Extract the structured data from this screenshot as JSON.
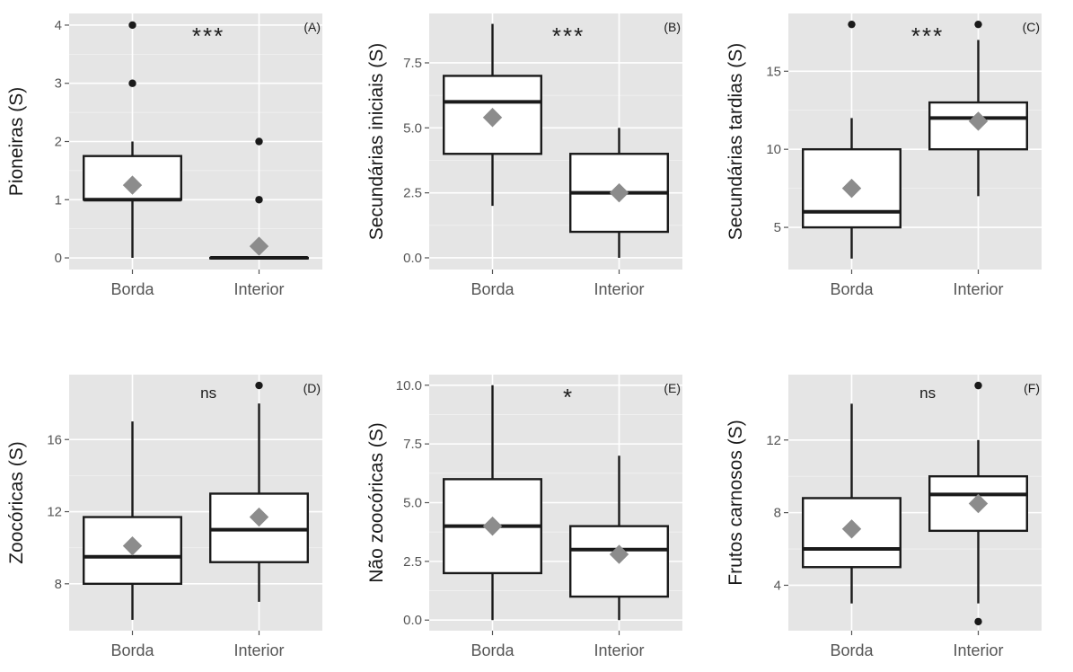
{
  "chart_data": [
    {
      "type": "box",
      "tag": "(A)",
      "ylabel": "Pioneiras (S)",
      "significance": "***",
      "categories": [
        "Borda",
        "Interior"
      ],
      "yticks": [
        0,
        1,
        2,
        3,
        4
      ],
      "ytick_labels": [
        "0",
        "1",
        "2",
        "3",
        "4"
      ],
      "ylim": [
        -0.2,
        4.2
      ],
      "grid": true,
      "boxes": [
        {
          "category": "Borda",
          "whisker_low": 0,
          "q1": 1,
          "median": 1,
          "q3": 1.75,
          "whisker_high": 2,
          "mean": 1.25,
          "outliers": [
            3,
            4
          ]
        },
        {
          "category": "Interior",
          "whisker_low": 0,
          "q1": 0,
          "median": 0,
          "q3": 0,
          "whisker_high": 0,
          "mean": 0.2,
          "outliers": [
            1,
            2
          ]
        }
      ]
    },
    {
      "type": "box",
      "tag": "(B)",
      "ylabel": "Secundárias iniciais (S)",
      "significance": "***",
      "categories": [
        "Borda",
        "Interior"
      ],
      "yticks": [
        0,
        2.5,
        5,
        7.5
      ],
      "ytick_labels": [
        "0.0",
        "2.5",
        "5.0",
        "7.5"
      ],
      "ylim": [
        -0.45,
        9.4
      ],
      "grid": true,
      "boxes": [
        {
          "category": "Borda",
          "whisker_low": 2,
          "q1": 4,
          "median": 6,
          "q3": 7,
          "whisker_high": 9,
          "mean": 5.4,
          "outliers": []
        },
        {
          "category": "Interior",
          "whisker_low": 0,
          "q1": 1,
          "median": 2.5,
          "q3": 4,
          "whisker_high": 5,
          "mean": 2.5,
          "outliers": []
        }
      ]
    },
    {
      "type": "box",
      "tag": "(C)",
      "ylabel": "Secundárias tardias (S)",
      "significance": "***",
      "categories": [
        "Borda",
        "Interior"
      ],
      "yticks": [
        5,
        10,
        15
      ],
      "ytick_labels": [
        "5",
        "10",
        "15"
      ],
      "ylim": [
        2.3,
        18.7
      ],
      "grid": true,
      "boxes": [
        {
          "category": "Borda",
          "whisker_low": 3,
          "q1": 5,
          "median": 6,
          "q3": 10,
          "whisker_high": 12,
          "mean": 7.5,
          "outliers": [
            18
          ]
        },
        {
          "category": "Interior",
          "whisker_low": 7,
          "q1": 10,
          "median": 12,
          "q3": 13,
          "whisker_high": 17,
          "mean": 11.8,
          "outliers": [
            18
          ]
        }
      ]
    },
    {
      "type": "box",
      "tag": "(D)",
      "ylabel": "Zoocóricas (S)",
      "significance": "ns",
      "categories": [
        "Borda",
        "Interior"
      ],
      "yticks": [
        8,
        12,
        16
      ],
      "ytick_labels": [
        "8",
        "12",
        "16"
      ],
      "ylim": [
        5.4,
        19.6
      ],
      "grid": true,
      "boxes": [
        {
          "category": "Borda",
          "whisker_low": 6,
          "q1": 8,
          "median": 9.5,
          "q3": 11.7,
          "whisker_high": 17,
          "mean": 10.1,
          "outliers": []
        },
        {
          "category": "Interior",
          "whisker_low": 7,
          "q1": 9.2,
          "median": 11,
          "q3": 13,
          "whisker_high": 18,
          "mean": 11.7,
          "outliers": [
            19
          ]
        }
      ]
    },
    {
      "type": "box",
      "tag": "(E)",
      "ylabel": "Não zoocóricas (S)",
      "significance": "*",
      "categories": [
        "Borda",
        "Interior"
      ],
      "yticks": [
        0,
        2.5,
        5,
        7.5,
        10
      ],
      "ytick_labels": [
        "0.0",
        "2.5",
        "5.0",
        "7.5",
        "10.0"
      ],
      "ylim": [
        -0.45,
        10.45
      ],
      "grid": true,
      "boxes": [
        {
          "category": "Borda",
          "whisker_low": 0,
          "q1": 2,
          "median": 4,
          "q3": 6,
          "whisker_high": 10,
          "mean": 4,
          "outliers": []
        },
        {
          "category": "Interior",
          "whisker_low": 0,
          "q1": 1,
          "median": 3,
          "q3": 4,
          "whisker_high": 7,
          "mean": 2.8,
          "outliers": []
        }
      ]
    },
    {
      "type": "box",
      "tag": "(F)",
      "ylabel": "Frutos carnosos (S)",
      "significance": "ns",
      "categories": [
        "Borda",
        "Interior"
      ],
      "yticks": [
        4,
        8,
        12
      ],
      "ytick_labels": [
        "4",
        "8",
        "12"
      ],
      "ylim": [
        1.5,
        15.6
      ],
      "grid": true,
      "boxes": [
        {
          "category": "Borda",
          "whisker_low": 3,
          "q1": 5,
          "median": 6,
          "q3": 8.8,
          "whisker_high": 14,
          "mean": 7.1,
          "outliers": []
        },
        {
          "category": "Interior",
          "whisker_low": 3,
          "q1": 7,
          "median": 9,
          "q3": 10,
          "whisker_high": 12,
          "mean": 8.5,
          "outliers": [
            2,
            15
          ]
        }
      ]
    }
  ],
  "colors": {
    "panel_background": "#e5e5e5",
    "grid": "#ffffff",
    "box_fill": "#ffffff",
    "box_stroke": "#1a1a1a",
    "mean_marker": "#8c8c8c",
    "outlier": "#1a1a1a"
  },
  "markers": {
    "mean": "diamond",
    "outlier": "filled-circle"
  }
}
